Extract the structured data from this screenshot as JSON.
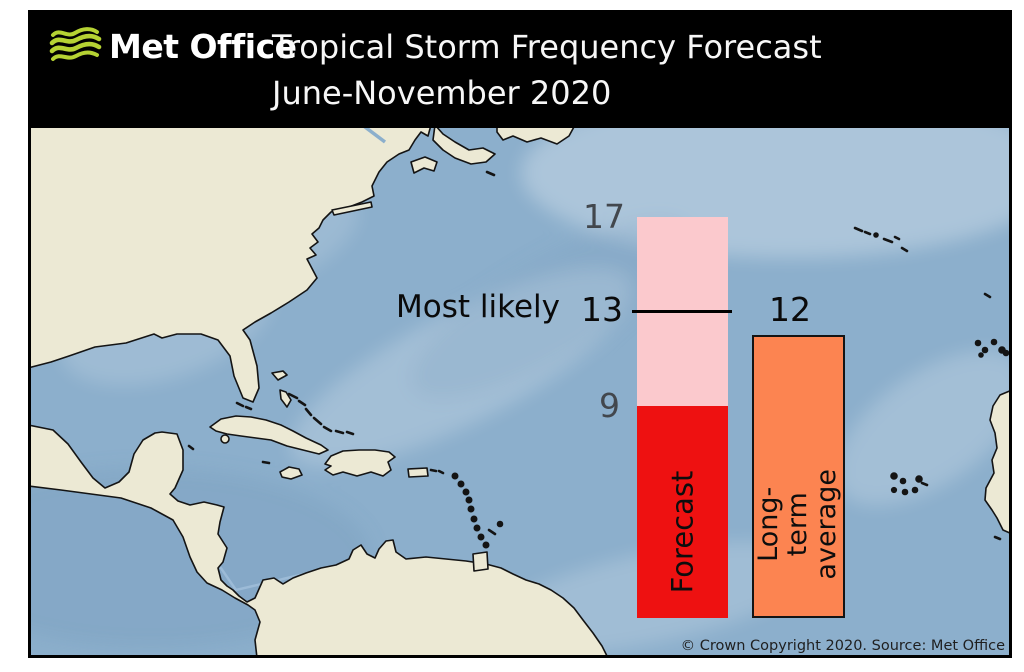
{
  "header": {
    "logo": {
      "brand": "Met Office",
      "icon": "met-office-waves-icon"
    },
    "title_line1": "Tropical Storm Frequency Forecast",
    "title_line2": "June-November 2020"
  },
  "chart_data": {
    "type": "bar",
    "title": "Tropical Storm Frequency Forecast",
    "subtitle": "June-November 2020",
    "categories": [
      "Forecast",
      "Long-term average"
    ],
    "series": [
      {
        "name": "Forecast",
        "style": "range",
        "range_low": 9,
        "range_high": 17,
        "most_likely": 13
      },
      {
        "name": "Long-term average",
        "style": "solid",
        "value": 12
      }
    ],
    "annotations": [
      {
        "text": "Most likely",
        "value": 13
      }
    ],
    "ylim": [
      0,
      17
    ],
    "grid": false,
    "legend_position": "labels-inside-bars",
    "background": "map of North Atlantic",
    "colors": {
      "forecast_range": "#fbc9cd",
      "forecast_solid": "#ee1111",
      "most_likely_line": "#000000",
      "long_term_average": "#fc8451"
    }
  },
  "labels": {
    "high": "17",
    "most_likely": "13",
    "low": "9",
    "average": "12",
    "most_likely_text": "Most likely",
    "forecast_bar": "Forecast",
    "average_bar": "Long-term average"
  },
  "footer": {
    "copyright": "© Crown Copyright 2020. Source: Met Office"
  },
  "colors": {
    "header_bg": "#000000",
    "header_text": "#ffffff",
    "logo_green": "#b5d233",
    "ocean": "#8cafcc",
    "land": "#ece9d4",
    "coastline": "#141414",
    "grey_value_label": "#42474d"
  }
}
